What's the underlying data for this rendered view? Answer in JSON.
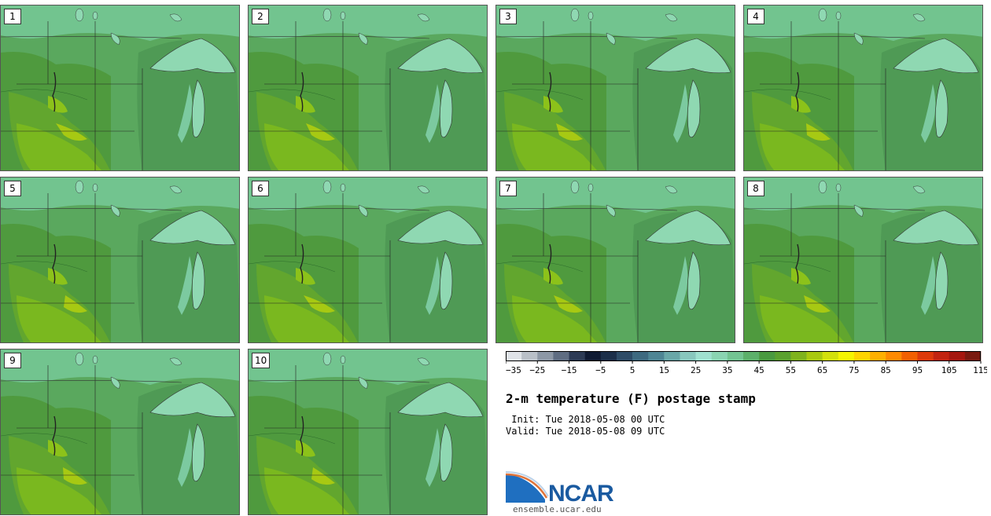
{
  "panels": [
    {
      "label": "1"
    },
    {
      "label": "2"
    },
    {
      "label": "3"
    },
    {
      "label": "4"
    },
    {
      "label": "5"
    },
    {
      "label": "6"
    },
    {
      "label": "7"
    },
    {
      "label": "8"
    },
    {
      "label": "9"
    },
    {
      "label": "10"
    }
  ],
  "colorbar": {
    "colors": [
      "#dfe3e8",
      "#b9c0c8",
      "#8d98a6",
      "#5f6d82",
      "#2c3a55",
      "#0f1a33",
      "#1c2f4a",
      "#2e4c67",
      "#3e6a80",
      "#4f8594",
      "#6aa7a8",
      "#88c7bd",
      "#9fe0cf",
      "#8ad4b2",
      "#73c492",
      "#5cb06a",
      "#4a9a40",
      "#5ba12f",
      "#7fb31d",
      "#a9c90f",
      "#d3e00b",
      "#f5f500",
      "#ffd400",
      "#ffb000",
      "#ff8a00",
      "#f26000",
      "#dd3a0a",
      "#c22410",
      "#a5170f",
      "#7a1a10"
    ],
    "tick_labels": [
      "−35",
      "−25",
      "−15",
      "−5",
      "5",
      "15",
      "25",
      "35",
      "45",
      "55",
      "65",
      "75",
      "85",
      "95",
      "105",
      "115"
    ]
  },
  "title": "2-m temperature (F) postage stamp",
  "init": " Init: Tue 2018-05-08 00 UTC",
  "valid": "Valid: Tue 2018-05-08 09 UTC",
  "logo": {
    "text": "NCAR",
    "site": "ensemble.ucar.edu"
  }
}
